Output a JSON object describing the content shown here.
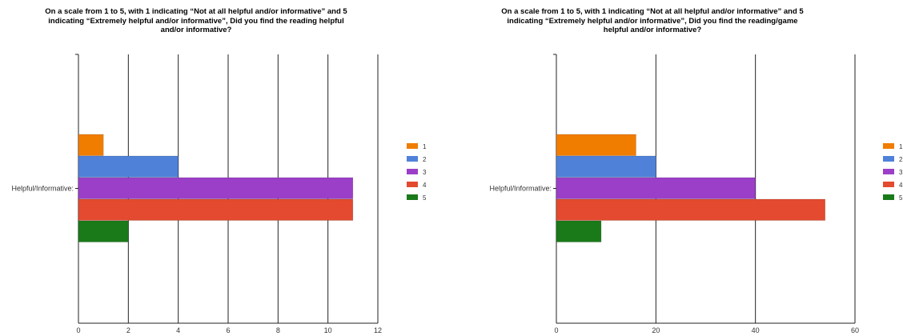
{
  "charts": [
    {
      "title_lines": [
        "On a scale from 1 to 5, with 1 indicating “Not at all helpful and/or informative” and 5",
        "indicating “Extremely helpful and/or informative”, Did you find the reading helpful",
        "and/or informative?"
      ]
    },
    {
      "title_lines": [
        "On a scale from 1 to 5, with 1 indicating “Not at all helpful and/or informative” and 5",
        "indicating “Extremely helpful and/or informative”, Did you find the reading/game",
        "helpful and/or informative?"
      ]
    }
  ],
  "chart_data": [
    {
      "type": "bar",
      "orientation": "horizontal",
      "title": "On a scale from 1 to 5, with 1 indicating “Not at all helpful and/or informative” and 5 indicating “Extremely helpful and/or informative”, Did you find the reading helpful and/or informative?",
      "categories": [
        "Helpful/Informative:"
      ],
      "series": [
        {
          "name": "1",
          "values": [
            1
          ],
          "color": "#f07c00"
        },
        {
          "name": "2",
          "values": [
            4
          ],
          "color": "#4f81d9"
        },
        {
          "name": "3",
          "values": [
            11
          ],
          "color": "#9b3fc8"
        },
        {
          "name": "4",
          "values": [
            11
          ],
          "color": "#e34a2f"
        },
        {
          "name": "5",
          "values": [
            2
          ],
          "color": "#1a7a1a"
        }
      ],
      "xlim": [
        0,
        12
      ],
      "xticks": [
        "0",
        "2",
        "4",
        "6",
        "8",
        "10",
        "12"
      ],
      "grid": true,
      "legend": "right"
    },
    {
      "type": "bar",
      "orientation": "horizontal",
      "title": "On a scale from 1 to 5, with 1 indicating “Not at all helpful and/or informative” and 5 indicating “Extremely helpful and/or informative”, Did you find the reading/game helpful and/or informative?",
      "categories": [
        "Helpful/Informative:"
      ],
      "series": [
        {
          "name": "1",
          "values": [
            16
          ],
          "color": "#f07c00"
        },
        {
          "name": "2",
          "values": [
            20
          ],
          "color": "#4f81d9"
        },
        {
          "name": "3",
          "values": [
            40
          ],
          "color": "#9b3fc8"
        },
        {
          "name": "4",
          "values": [
            54
          ],
          "color": "#e34a2f"
        },
        {
          "name": "5",
          "values": [
            9
          ],
          "color": "#1a7a1a"
        }
      ],
      "xlim": [
        0,
        60
      ],
      "xticks": [
        "0",
        "20",
        "40",
        "60"
      ],
      "grid": true,
      "legend": "right"
    }
  ]
}
